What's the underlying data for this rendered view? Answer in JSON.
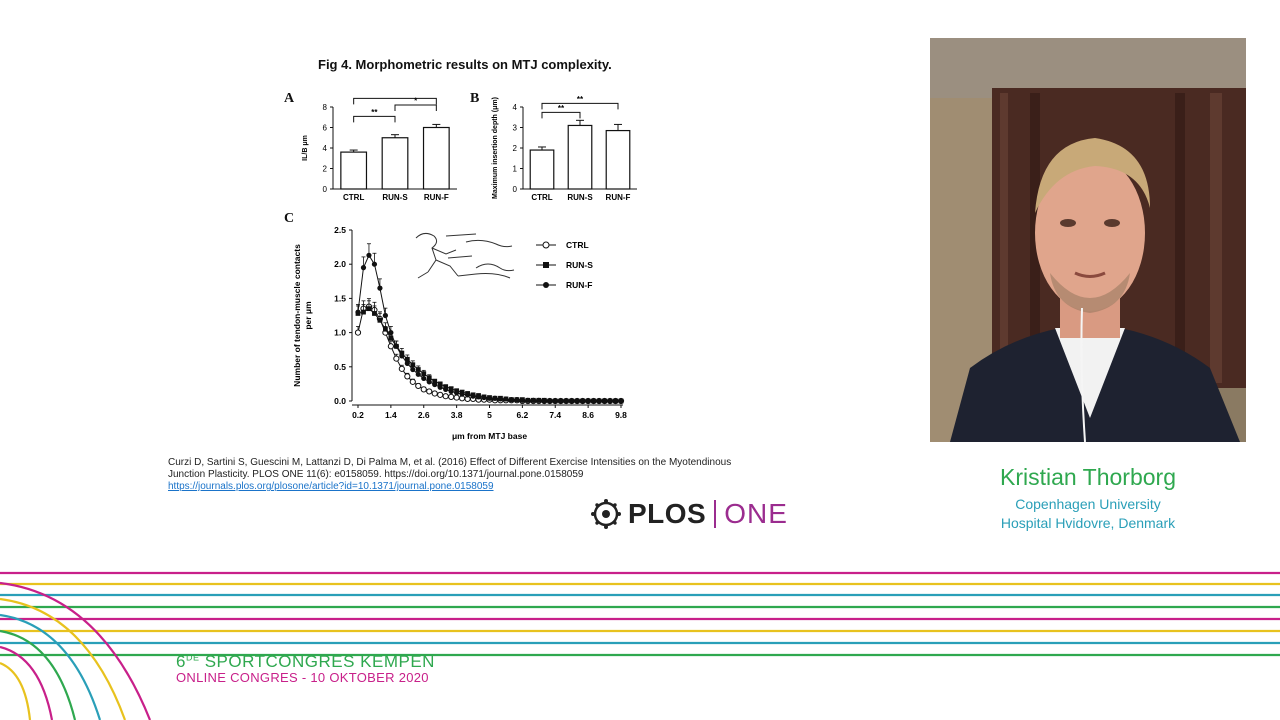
{
  "figure": {
    "title": "Fig 4. Morphometric results on MTJ complexity.",
    "panel_a_letter": "A",
    "panel_b_letter": "B",
    "panel_c_letter": "C"
  },
  "chart_data": [
    {
      "type": "bar",
      "panel": "A",
      "categories": [
        "CTRL",
        "RUN-S",
        "RUN-F"
      ],
      "values": [
        3.6,
        5.0,
        6.0
      ],
      "errors": [
        0.2,
        0.3,
        0.3
      ],
      "ylabel": "IL/B μm",
      "ylim": [
        0,
        8
      ],
      "yticks": [
        0,
        2,
        4,
        6,
        8
      ],
      "significance": [
        {
          "from": "CTRL",
          "to": "RUN-S",
          "label": "**"
        },
        {
          "from": "CTRL",
          "to": "RUN-F",
          "label": "**"
        },
        {
          "from": "RUN-S",
          "to": "RUN-F",
          "label": "*"
        }
      ]
    },
    {
      "type": "bar",
      "panel": "B",
      "categories": [
        "CTRL",
        "RUN-S",
        "RUN-F"
      ],
      "values": [
        1.9,
        3.1,
        2.85
      ],
      "errors": [
        0.15,
        0.25,
        0.3
      ],
      "ylabel": "Maximum insertion depth (μm)",
      "ylim": [
        0,
        4
      ],
      "yticks": [
        0,
        1,
        2,
        3,
        4
      ],
      "significance": [
        {
          "from": "CTRL",
          "to": "RUN-S",
          "label": "**"
        },
        {
          "from": "CTRL",
          "to": "RUN-F",
          "label": "**"
        }
      ]
    },
    {
      "type": "line",
      "panel": "C",
      "xlabel": "μm from MTJ base",
      "ylabel": "Number of tendon-muscle contacts per μm",
      "xlim": [
        0.2,
        9.8
      ],
      "ylim": [
        0,
        2.5
      ],
      "xticks": [
        "0.2",
        "1.4",
        "2.6",
        "3.8",
        "5",
        "6.2",
        "7.4",
        "8.6",
        "9.8"
      ],
      "yticks": [
        "0.0",
        "0.5",
        "1.0",
        "1.5",
        "2.0",
        "2.5"
      ],
      "x": [
        0.2,
        0.4,
        0.6,
        0.8,
        1.0,
        1.2,
        1.4,
        1.6,
        1.8,
        2.0,
        2.2,
        2.4,
        2.6,
        2.8,
        3.0,
        3.2,
        3.4,
        3.6,
        3.8,
        4.0,
        4.2,
        4.4,
        4.6,
        4.8,
        5.0,
        5.2,
        5.4,
        5.6,
        5.8,
        6.0,
        6.2,
        6.4,
        6.6,
        6.8,
        7.0,
        7.2,
        7.4,
        7.6,
        7.8,
        8.0,
        8.2,
        8.4,
        8.6,
        8.8,
        9.0,
        9.2,
        9.4,
        9.6,
        9.8
      ],
      "series": [
        {
          "name": "CTRL",
          "marker": "open-circle",
          "values": [
            1.0,
            1.35,
            1.38,
            1.33,
            1.2,
            1.0,
            0.8,
            0.62,
            0.47,
            0.36,
            0.28,
            0.22,
            0.17,
            0.14,
            0.11,
            0.09,
            0.07,
            0.06,
            0.05,
            0.04,
            0.03,
            0.03,
            0.02,
            0.02,
            0.02,
            0.01,
            0.01,
            0.01,
            0.01,
            0.01,
            0.0,
            0.0,
            0.0,
            0.0,
            0.0,
            0.0,
            0.0,
            0.0,
            0.0,
            0.0,
            0.0,
            0.0,
            0.0,
            0.0,
            0.0,
            0.0,
            0.0,
            0.0,
            0.0
          ]
        },
        {
          "name": "RUN-S",
          "marker": "filled-square",
          "values": [
            1.28,
            1.3,
            1.35,
            1.28,
            1.18,
            1.05,
            0.92,
            0.8,
            0.7,
            0.61,
            0.53,
            0.46,
            0.4,
            0.34,
            0.29,
            0.25,
            0.21,
            0.18,
            0.15,
            0.13,
            0.11,
            0.09,
            0.08,
            0.06,
            0.05,
            0.04,
            0.04,
            0.03,
            0.02,
            0.02,
            0.02,
            0.01,
            0.01,
            0.01,
            0.01,
            0.0,
            0.0,
            0.0,
            0.0,
            0.0,
            0.0,
            0.0,
            0.0,
            0.0,
            0.0,
            0.0,
            0.0,
            0.0,
            0.0
          ]
        },
        {
          "name": "RUN-F",
          "marker": "filled-circle",
          "values": [
            1.3,
            1.95,
            2.13,
            2.0,
            1.65,
            1.25,
            1.0,
            0.8,
            0.66,
            0.55,
            0.46,
            0.39,
            0.33,
            0.28,
            0.24,
            0.2,
            0.17,
            0.14,
            0.12,
            0.1,
            0.09,
            0.07,
            0.06,
            0.05,
            0.04,
            0.04,
            0.03,
            0.03,
            0.02,
            0.02,
            0.01,
            0.01,
            0.01,
            0.01,
            0.0,
            0.0,
            0.0,
            0.0,
            0.0,
            0.0,
            0.0,
            0.0,
            0.0,
            0.0,
            0.0,
            0.0,
            0.0,
            0.0,
            0.0
          ]
        }
      ],
      "legend": "top-right"
    }
  ],
  "citation": {
    "text": "Curzi D, Sartini S, Guescini M, Lattanzi D, Di Palma M, et al. (2016) Effect of Different Exercise Intensities on the Myotendinous Junction Plasticity. PLOS ONE 11(6): e0158059. https://doi.org/10.1371/journal.pone.0158059",
    "link": "https://journals.plos.org/plosone/article?id=10.1371/journal.pone.0158059"
  },
  "logo": {
    "plos": "PLOS",
    "one": "ONE"
  },
  "speaker": {
    "name": "Kristian Thorborg",
    "affiliation_line1": "Copenhagen University",
    "affiliation_line2": "Hospital Hvidovre, Denmark"
  },
  "congress": {
    "number": "6",
    "ordinal": "DE",
    "title": "SPORTCONGRES KEMPEN",
    "subtitle": "ONLINE CONGRES - 10 OKTOBER 2020"
  },
  "colors": {
    "magenta": "#c8208a",
    "green": "#2fa84f",
    "yellow": "#e8c21e",
    "cyan": "#2a9fb8",
    "plos_purple": "#9b2c8f"
  }
}
